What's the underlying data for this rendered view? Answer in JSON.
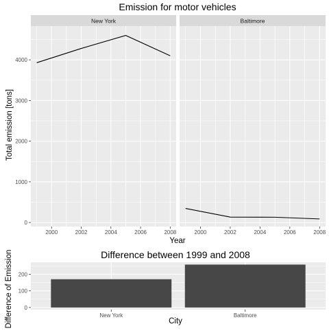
{
  "chart_data": [
    {
      "type": "line",
      "title": "Emission for motor vehicles",
      "xlabel": "Year",
      "ylabel": "Total emission [tons]",
      "xlim": [
        1998.6,
        2008.4
      ],
      "ylim": [
        -100,
        4830
      ],
      "x_ticks": [
        2000,
        2002,
        2004,
        2006,
        2008
      ],
      "y_ticks": [
        0,
        1000,
        2000,
        3000,
        4000
      ],
      "grid": true,
      "facets": [
        {
          "name": "New York",
          "x": [
            1999,
            2002,
            2005,
            2008
          ],
          "values": [
            3930,
            4280,
            4600,
            4100
          ]
        },
        {
          "name": "Baltimore",
          "x": [
            1999,
            2002,
            2005,
            2008
          ],
          "values": [
            346,
            134,
            130,
            88
          ]
        }
      ],
      "colors": {
        "line": "#000000",
        "panel": "#ebebeb",
        "strip": "#d9d9d9",
        "grid": "#ffffff"
      }
    },
    {
      "type": "bar",
      "title": "Difference between 1999 and 2008",
      "xlabel": "City",
      "ylabel": "Difference of Emission",
      "categories": [
        "New York",
        "Baltimore"
      ],
      "values": [
        170,
        258
      ],
      "ylim": [
        -13,
        272
      ],
      "y_ticks": [
        0,
        100,
        200
      ],
      "grid": true,
      "colors": {
        "bar": "#474747",
        "panel": "#ebebeb",
        "grid": "#ffffff"
      }
    }
  ]
}
